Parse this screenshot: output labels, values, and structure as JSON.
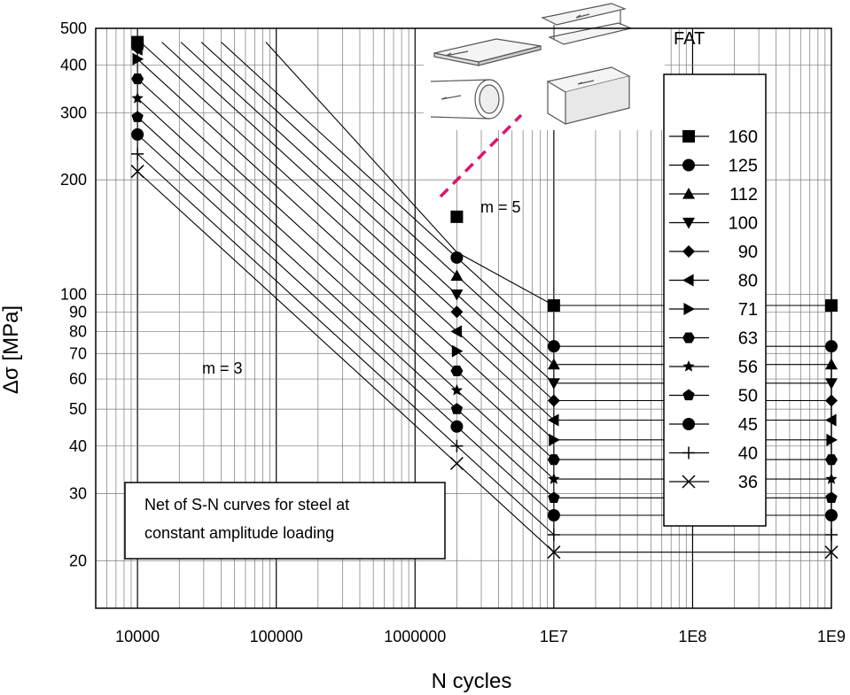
{
  "chart_data": {
    "type": "line",
    "xlabel": "N cycles",
    "ylabel": "Δσ [MPa]",
    "x_scale": "log",
    "y_scale": "log",
    "xlim": [
      5000,
      1000000000
    ],
    "ylim": [
      15,
      500
    ],
    "x_ticks": [
      {
        "value": 10000,
        "label": "10000"
      },
      {
        "value": 100000,
        "label": "100000"
      },
      {
        "value": 1000000,
        "label": "1000000"
      },
      {
        "value": 10000000,
        "label": "1E7"
      },
      {
        "value": 100000000,
        "label": "1E8"
      },
      {
        "value": 1000000000,
        "label": "1E9"
      }
    ],
    "y_ticks": [
      {
        "value": 20,
        "label": "20"
      },
      {
        "value": 30,
        "label": "30"
      },
      {
        "value": 40,
        "label": "40"
      },
      {
        "value": 50,
        "label": "50"
      },
      {
        "value": 60,
        "label": "60"
      },
      {
        "value": 70,
        "label": "70"
      },
      {
        "value": 80,
        "label": "80"
      },
      {
        "value": 90,
        "label": "90"
      },
      {
        "value": 100,
        "label": "100"
      },
      {
        "value": 200,
        "label": "200"
      },
      {
        "value": 300,
        "label": "300"
      },
      {
        "value": 400,
        "label": "400"
      },
      {
        "value": 500,
        "label": "500"
      }
    ],
    "grid": true,
    "legend_title": "FAT",
    "legend_position": "right",
    "series": [
      {
        "name": "160",
        "marker": "square",
        "fat": 160
      },
      {
        "name": "125",
        "marker": "circle",
        "fat": 125
      },
      {
        "name": "112",
        "marker": "triangle-up",
        "fat": 112
      },
      {
        "name": "100",
        "marker": "triangle-down",
        "fat": 100
      },
      {
        "name": "90",
        "marker": "diamond",
        "fat": 90
      },
      {
        "name": "80",
        "marker": "triangle-left",
        "fat": 80
      },
      {
        "name": "71",
        "marker": "triangle-right",
        "fat": 71
      },
      {
        "name": "63",
        "marker": "hexagon",
        "fat": 63
      },
      {
        "name": "56",
        "marker": "star",
        "fat": 56
      },
      {
        "name": "50",
        "marker": "pentagon",
        "fat": 50
      },
      {
        "name": "45",
        "marker": "circle",
        "fat": 45
      },
      {
        "name": "40",
        "marker": "plus",
        "fat": 40
      },
      {
        "name": "36",
        "marker": "cross",
        "fat": 36
      }
    ],
    "curve_model": {
      "knee1_cycles": 2000000,
      "knee2_cycles": 10000000,
      "m1": 3,
      "m2": 5,
      "max_stress_mpa": 460
    },
    "annotations": [
      {
        "text": "m = 3"
      },
      {
        "text": "m = 5"
      }
    ],
    "note_box": [
      "Net of S-N curves for steel at",
      "constant amplitude loading"
    ],
    "dashed_line_color": "#d9166f"
  }
}
